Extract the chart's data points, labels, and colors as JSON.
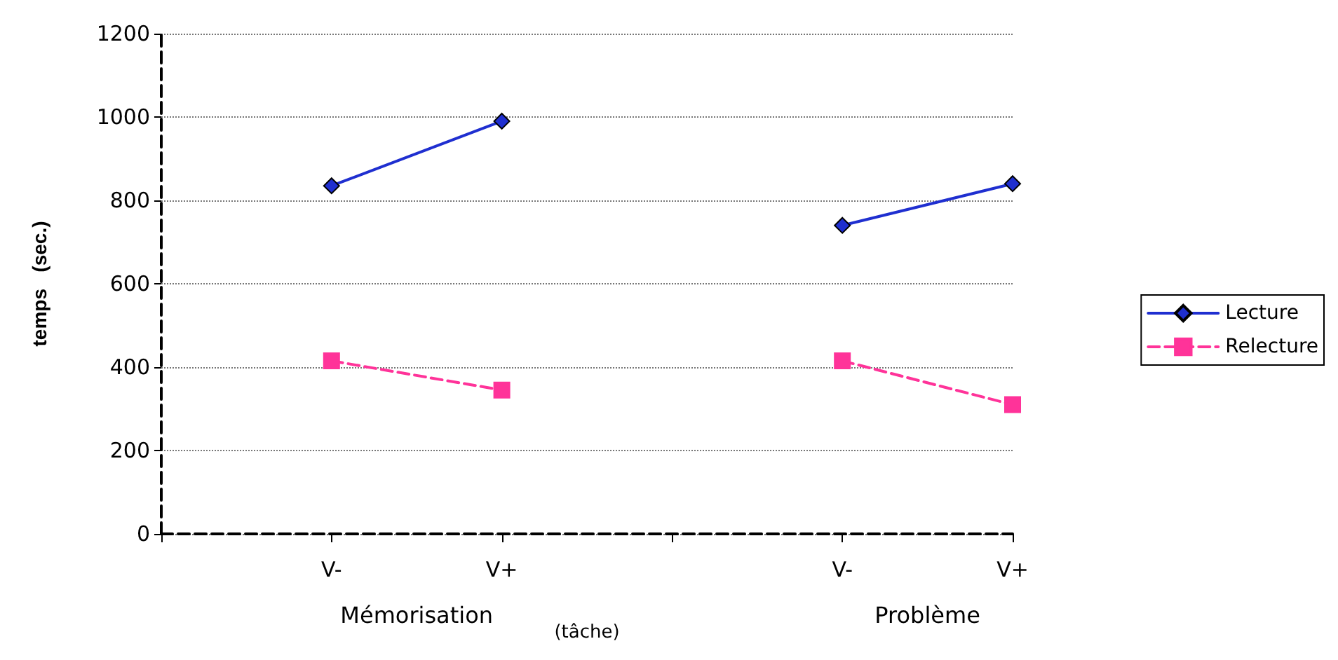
{
  "chart_data": {
    "type": "line",
    "xlabel": "(tâche)",
    "ylabel": "temps   (sec.)",
    "categories": [
      null,
      "V-",
      "V+",
      null,
      "V-",
      "V+"
    ],
    "series": [
      {
        "name": "Lecture",
        "color": "#1f2fd0",
        "values": [
          null,
          835,
          990,
          null,
          740,
          840
        ],
        "marker": "diamond",
        "line_style": "solid"
      },
      {
        "name": "Relecture",
        "color": "#ff3399",
        "values": [
          null,
          415,
          345,
          null,
          415,
          310
        ],
        "marker": "square",
        "line_style": "dashed"
      }
    ],
    "annotations": [
      "Mémorisation",
      "Problème"
    ],
    "ylim": [
      0,
      1200
    ],
    "yticks": [
      0,
      200,
      400,
      600,
      800,
      1000,
      1200
    ],
    "grid": "y",
    "legend": "right"
  }
}
